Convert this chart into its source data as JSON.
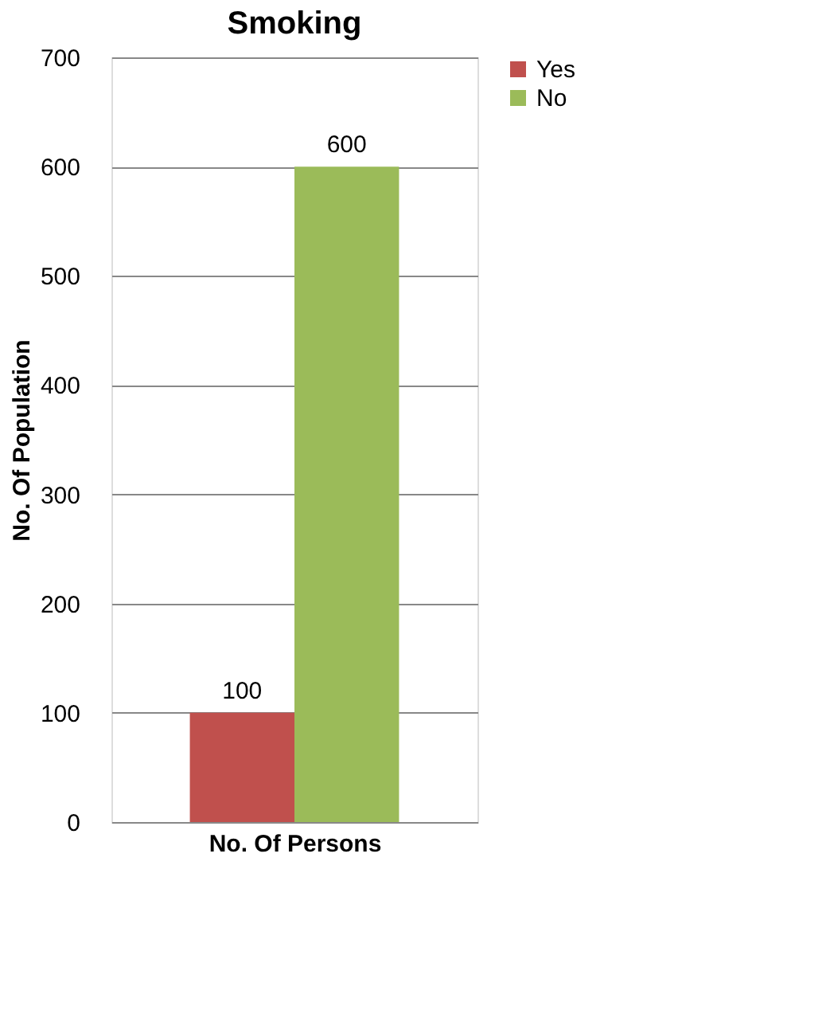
{
  "chart_data": {
    "type": "bar",
    "title": "Smoking",
    "xlabel": "No. Of Persons",
    "ylabel": "No. Of Population",
    "categories": [
      null
    ],
    "series": [
      {
        "name": "Yes",
        "color": "#c0504d",
        "values": [
          100
        ]
      },
      {
        "name": "No",
        "color": "#9bbb59",
        "values": [
          600
        ]
      }
    ],
    "ylim": [
      0,
      700
    ],
    "yticks": [
      0,
      100,
      200,
      300,
      400,
      500,
      600,
      700
    ],
    "grid": "y",
    "legend": "right",
    "data_labels": true
  }
}
